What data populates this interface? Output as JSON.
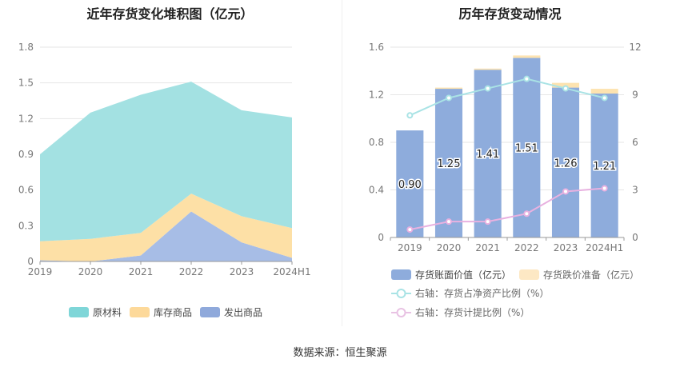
{
  "titles": {
    "left": "近年存货变化堆积图（亿元）",
    "right": "历年存货变动情况"
  },
  "source": "数据来源：恒生聚源",
  "chart_data": [
    {
      "type": "area",
      "stacked": true,
      "title": "近年存货变化堆积图（亿元）",
      "categories": [
        "2019",
        "2020",
        "2021",
        "2022",
        "2023",
        "2024H1"
      ],
      "ylim": [
        0,
        1.8
      ],
      "yticks": [
        0,
        0.3,
        0.6,
        0.9,
        1.2,
        1.5,
        1.8
      ],
      "ytick_labels": [
        "0",
        "0.3",
        "0.6",
        "0.9",
        "1.2",
        "1.5",
        "1.8"
      ],
      "grid": true,
      "legend_position": "bottom",
      "series": [
        {
          "name": "发出商品",
          "color": "#a7bde6",
          "values": [
            0.01,
            0.0,
            0.05,
            0.42,
            0.16,
            0.03
          ]
        },
        {
          "name": "库存商品",
          "color": "#fde0a6",
          "values": [
            0.16,
            0.19,
            0.19,
            0.15,
            0.22,
            0.25
          ]
        },
        {
          "name": "原材料",
          "color": "#a3e1e2",
          "values": [
            0.73,
            1.06,
            1.16,
            0.94,
            0.89,
            0.93
          ]
        }
      ],
      "legend": [
        {
          "name": "原材料",
          "color": "#7fd6d8"
        },
        {
          "name": "库存商品",
          "color": "#fdd99a"
        },
        {
          "name": "发出商品",
          "color": "#8fa9db"
        }
      ]
    },
    {
      "type": "bar",
      "title": "历年存货变动情况",
      "categories": [
        "2019",
        "2020",
        "2021",
        "2022",
        "2023",
        "2024H1"
      ],
      "ylim_left": [
        0,
        1.6
      ],
      "yticks_left": [
        "0",
        "0.4",
        "0.8",
        "1.2",
        "1.6"
      ],
      "ylim_right": [
        0,
        12
      ],
      "yticks_right": [
        "0",
        "3",
        "6",
        "9",
        "12"
      ],
      "legend_position": "bottom",
      "series": [
        {
          "name": "存货账面价值（亿元）",
          "kind": "bar",
          "color": "#8eacdc",
          "values": [
            0.9,
            1.25,
            1.41,
            1.51,
            1.26,
            1.21
          ],
          "labels": [
            "0.90",
            "1.25",
            "1.41",
            "1.51",
            "1.26",
            "1.21"
          ]
        },
        {
          "name": "存货跌价准备（亿元）",
          "kind": "bar-stacked",
          "color": "#fde3b0",
          "values": [
            0.0,
            0.01,
            0.01,
            0.02,
            0.04,
            0.04
          ]
        },
        {
          "name": "右轴：存货占净资产比例（%）",
          "kind": "line",
          "axis": "right",
          "color": "#a9e3e5",
          "values": [
            7.7,
            8.8,
            9.4,
            10.0,
            9.4,
            8.8
          ]
        },
        {
          "name": "右轴：存货计提比例（%）",
          "kind": "line",
          "axis": "right",
          "color": "#e8b1e0",
          "values": [
            0.5,
            1.0,
            1.0,
            1.5,
            2.9,
            3.1
          ]
        }
      ]
    }
  ]
}
